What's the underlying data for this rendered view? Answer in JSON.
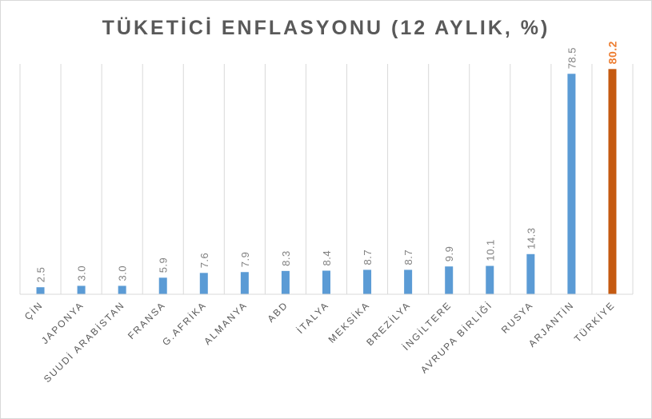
{
  "chart_data": {
    "type": "bar",
    "title": "TÜKETİCİ  ENFLASYONU  (12 AYLIK, %)",
    "categories": [
      "ÇİN",
      "JAPONYA",
      "SUUDİ ARABİSTAN",
      "FRANSA",
      "G.AFRİKA",
      "ALMANYA",
      "ABD",
      "İTALYA",
      "MEKSİKA",
      "BREZİLYA",
      "İNGİLTERE",
      "AVRUPA BİRLİĞİ",
      "RUSYA",
      "ARJANTİN",
      "TÜRKİYE"
    ],
    "values": [
      2.5,
      3.0,
      3.0,
      5.9,
      7.6,
      7.9,
      8.3,
      8.4,
      8.7,
      8.7,
      9.9,
      10.1,
      14.3,
      78.5,
      80.2
    ],
    "value_labels": [
      "2.5",
      "3.0",
      "3.0",
      "5.9",
      "7.6",
      "7.9",
      "8.3",
      "8.4",
      "8.7",
      "8.7",
      "9.9",
      "10.1",
      "14.3",
      "78.5",
      "80.2"
    ],
    "highlight_index": 14,
    "ylim": [
      0,
      82
    ],
    "xlabel": "",
    "ylabel": "",
    "grid": "vertical",
    "colors": {
      "bar": "#5b9bd5",
      "highlight": "#c55a11",
      "label": "#808080",
      "highlight_label": "#ed7d31",
      "grid": "#d9d9d9"
    }
  }
}
